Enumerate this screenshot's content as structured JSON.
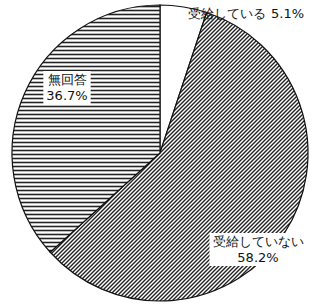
{
  "chart_data": {
    "type": "pie",
    "categories": [
      "受給している",
      "受給していない",
      "無回答"
    ],
    "values": [
      5.1,
      58.2,
      36.7
    ],
    "value_labels": [
      "5.1%",
      "58.2%",
      "36.7%"
    ],
    "colors": [
      "#ffffff",
      "#222222",
      "#222222"
    ],
    "data_labels": true
  }
}
